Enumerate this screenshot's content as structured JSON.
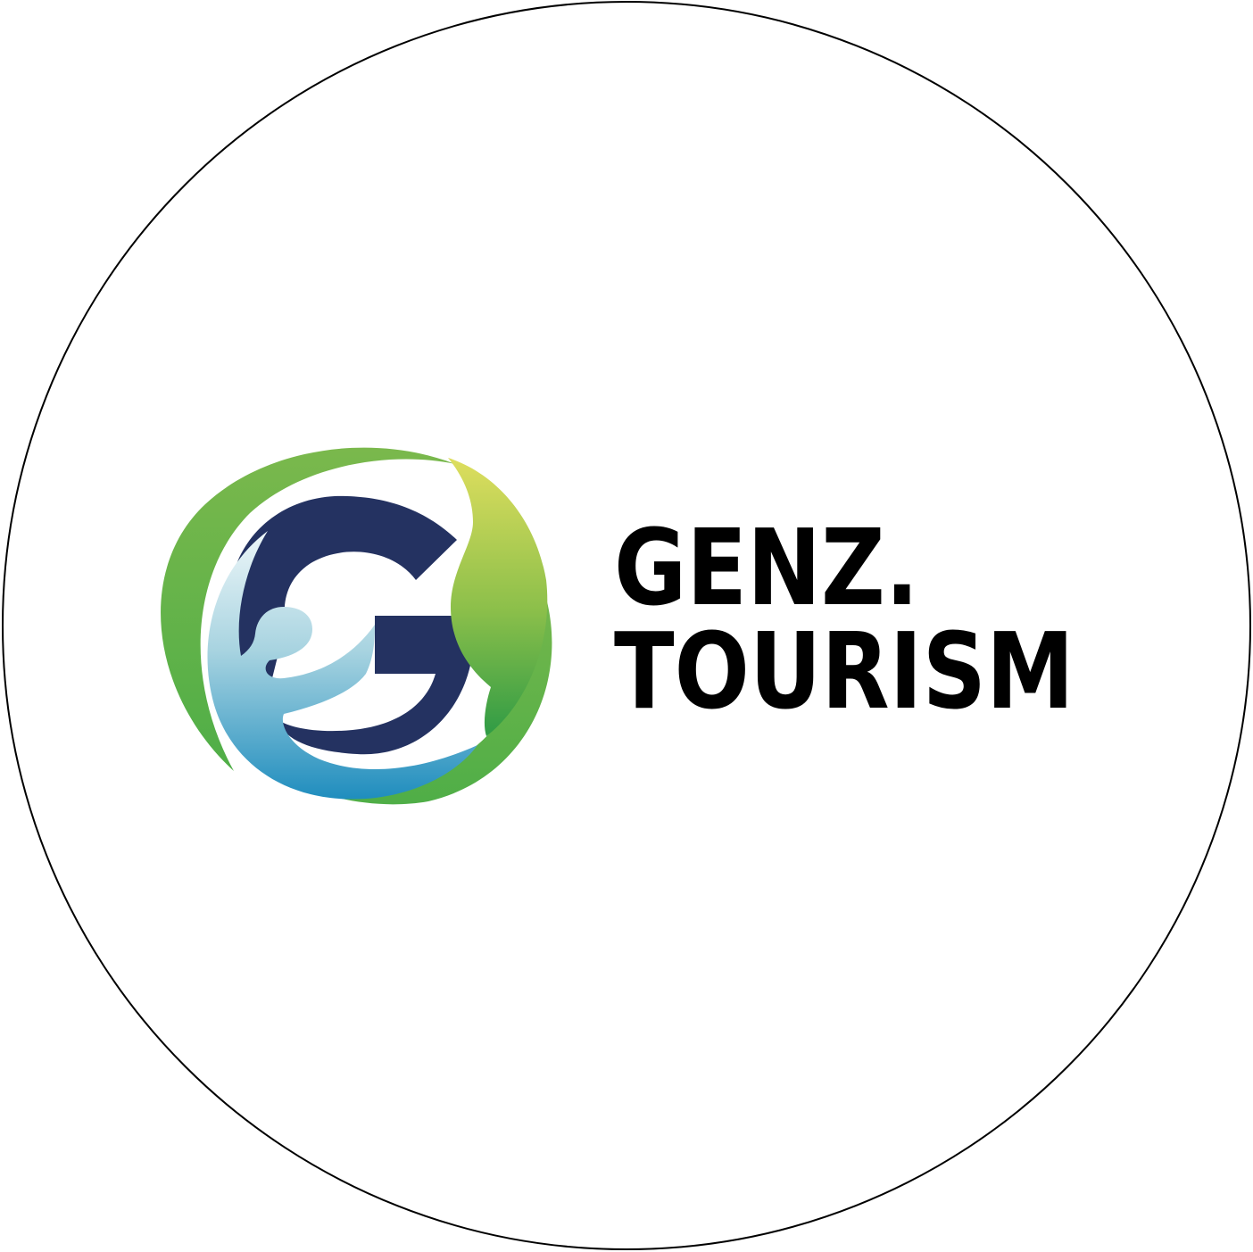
{
  "brand": {
    "line1": "GENZ.",
    "line2": "TOURISM",
    "text_color": "#000000"
  },
  "emblem": {
    "icon": "g-person-leaf-logo-icon",
    "colors": {
      "ring_green": "#72b54a",
      "leaf_yellow": "#d7d75a",
      "leaf_green": "#5aae44",
      "letter_navy": "#243261",
      "figure_light_blue": "#bfe0ea",
      "figure_blue": "#2b8fbd",
      "badge_outline": "#000000",
      "background": "#ffffff"
    }
  }
}
